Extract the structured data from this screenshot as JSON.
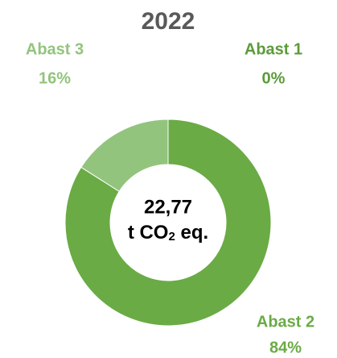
{
  "chart_data": {
    "type": "donut",
    "title": "2022",
    "categories": [
      "Abast 1",
      "Abast 2",
      "Abast 3"
    ],
    "values": [
      0,
      84,
      16
    ],
    "value_labels": [
      "0%",
      "84%",
      "16%"
    ],
    "colors": [
      "#5b9b3a",
      "#6aab45",
      "#93c47d"
    ],
    "center_label": {
      "value": "22,77",
      "unit": [
        "t CO",
        "2",
        " eq."
      ]
    }
  }
}
